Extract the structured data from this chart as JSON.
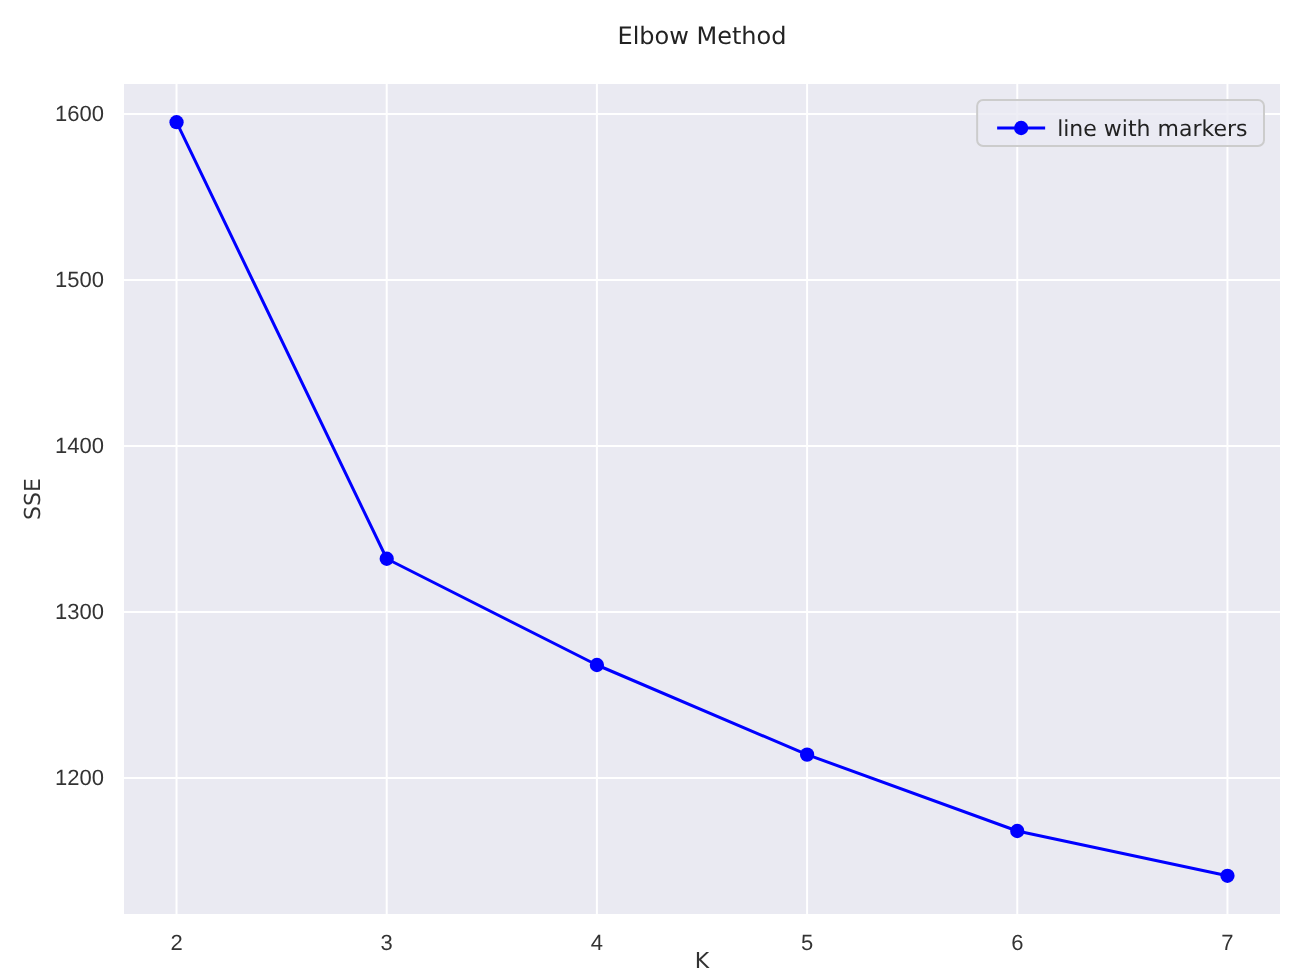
{
  "chart_data": {
    "type": "line",
    "title": "Elbow Method",
    "xlabel": "K",
    "ylabel": "SSE",
    "x": [
      2,
      3,
      4,
      5,
      6,
      7
    ],
    "series": [
      {
        "name": "line with markers",
        "color": "#0000ff",
        "values": [
          1595,
          1332,
          1268,
          1214,
          1168,
          1141
        ]
      }
    ],
    "xlim": [
      1.75,
      7.25
    ],
    "xticks": [
      2,
      3,
      4,
      5,
      6,
      7
    ],
    "ylim": [
      1118,
      1618
    ],
    "yticks": [
      1200,
      1300,
      1400,
      1500,
      1600
    ],
    "grid": true,
    "legend": "top right",
    "marker": "circle",
    "line_style": "solid"
  }
}
